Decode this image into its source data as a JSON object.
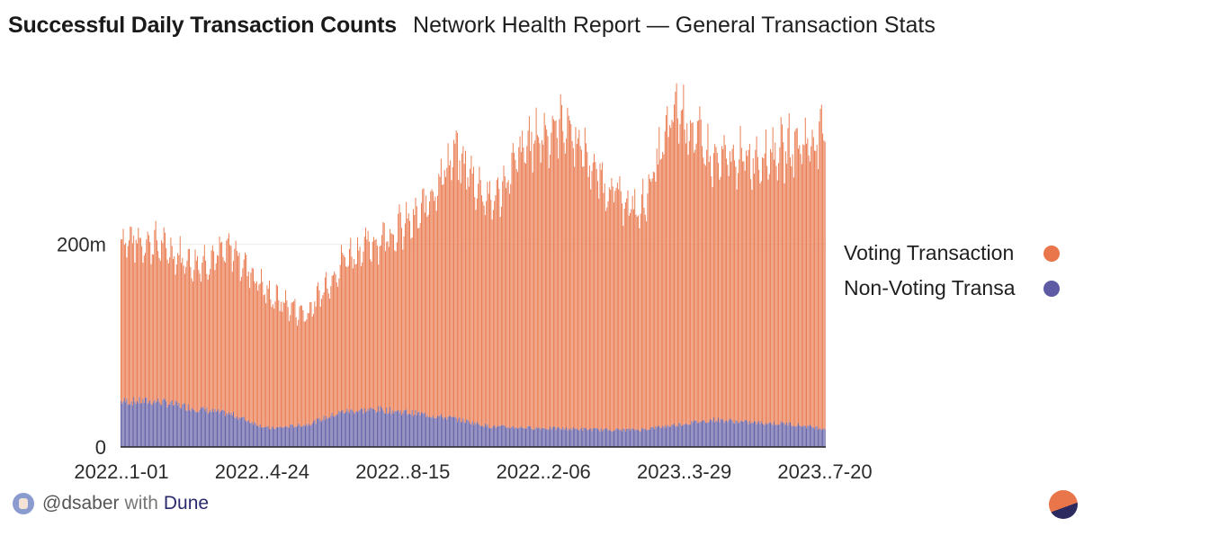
{
  "header": {
    "title": "Successful Daily Transaction Counts",
    "subtitle": "Network Health Report — General Transaction Stats"
  },
  "footer": {
    "author": "@dsaber",
    "with": "with",
    "brand": "Dune"
  },
  "colors": {
    "voting": "#e9764a",
    "non_voting": "#5e5aa3",
    "brand_dark": "#2c2a5e"
  },
  "chart_data": {
    "type": "bar",
    "stacked": true,
    "title": "Successful Daily Transaction Counts",
    "subtitle": "Network Health Report — General Transaction Stats",
    "x_tick_labels": [
      "2022..1-01",
      "2022..4-24",
      "2022..8-15",
      "2022..2-06",
      "2023..3-29",
      "2023..7-20"
    ],
    "y_tick_labels": [
      "0",
      "200m"
    ],
    "y_ticks": [
      0,
      200
    ],
    "ylim": [
      0,
      370
    ],
    "y_unit": "millions",
    "x_start": "2022-01-01",
    "x_end": "2023-09-01",
    "legend_position": "right",
    "grid": true,
    "series": [
      {
        "name": "Voting Transactions",
        "legend_label": "Voting Transaction",
        "color": "#e9764a",
        "monthly_total_millions": [
          205,
          200,
          180,
          195,
          150,
          130,
          185,
          205,
          225,
          290,
          240,
          300,
          320,
          260,
          230,
          335,
          280,
          285,
          295,
          305
        ]
      },
      {
        "name": "Non-Voting Transactions",
        "legend_label": "Non-Voting Transa",
        "color": "#5e5aa3",
        "monthly_millions": [
          45,
          45,
          38,
          32,
          18,
          22,
          35,
          37,
          33,
          28,
          20,
          19,
          18,
          17,
          17,
          22,
          27,
          24,
          23,
          18
        ]
      }
    ]
  }
}
